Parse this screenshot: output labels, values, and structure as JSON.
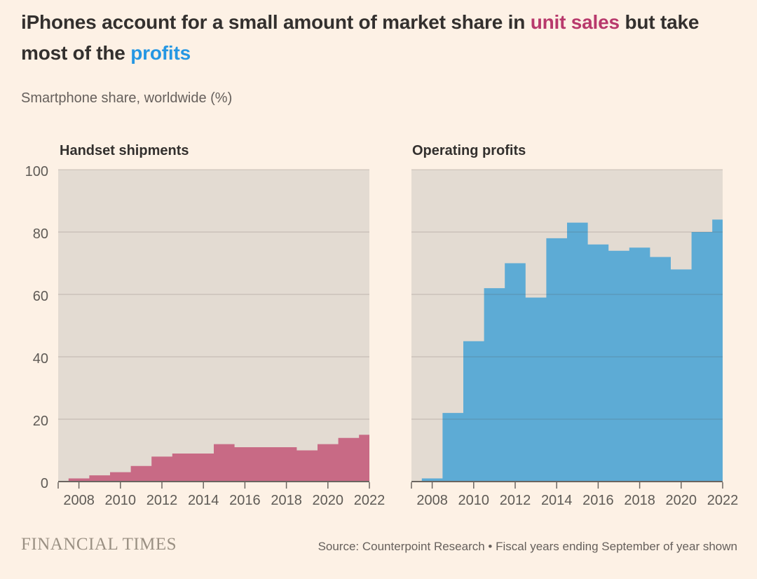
{
  "page": {
    "background": "#fdf1e5"
  },
  "colors": {
    "crimson_accent": "#b8396c",
    "blue_accent": "#2597e3",
    "title_text": "#33302e",
    "muted_text": "#66605c",
    "axis_label": "#5f5b56",
    "axis_line": "#6b6560",
    "plot_background": "#e3dbd2",
    "gridline": "rgba(80,70,60,0.16)",
    "pink_series": "#c86a85",
    "blue_series": "#5dabd5"
  },
  "title": {
    "line1": [
      {
        "text": "iPhones account for a small amount of market share in "
      },
      {
        "text": "unit sales"
      },
      {
        "text": " but take"
      }
    ],
    "line2": [
      {
        "text": "most of the "
      },
      {
        "text": "profits"
      }
    ]
  },
  "subtitle": "Smartphone share, worldwide (%)",
  "chart_data": [
    {
      "type": "area",
      "step": true,
      "title": "Handset shipments",
      "color": "#c86a85",
      "categories": [
        2008,
        2009,
        2010,
        2011,
        2012,
        2013,
        2014,
        2015,
        2016,
        2017,
        2018,
        2019,
        2020,
        2021,
        2022
      ],
      "values": [
        1,
        2,
        3,
        5,
        8,
        9,
        9,
        12,
        11,
        11,
        11,
        10,
        12,
        14,
        15
      ],
      "xlim": [
        2007,
        2022
      ],
      "ylim": [
        0,
        100
      ],
      "yticks": [
        0,
        20,
        40,
        60,
        80,
        100
      ],
      "xticks": [
        2008,
        2010,
        2012,
        2014,
        2016,
        2018,
        2020,
        2022
      ],
      "grid": true,
      "show_y_labels": true
    },
    {
      "type": "area",
      "step": true,
      "title": "Operating profits",
      "color": "#5dabd5",
      "categories": [
        2008,
        2009,
        2010,
        2011,
        2012,
        2013,
        2014,
        2015,
        2016,
        2017,
        2018,
        2019,
        2020,
        2021,
        2022
      ],
      "values": [
        1,
        22,
        45,
        62,
        70,
        59,
        78,
        83,
        76,
        74,
        75,
        72,
        68,
        80,
        84
      ],
      "xlim": [
        2007,
        2022
      ],
      "ylim": [
        0,
        100
      ],
      "yticks": [
        0,
        20,
        40,
        60,
        80,
        100
      ],
      "xticks": [
        2008,
        2010,
        2012,
        2014,
        2016,
        2018,
        2020,
        2022
      ],
      "grid": true,
      "show_y_labels": false
    }
  ],
  "footer": {
    "brand": "FINANCIAL TIMES",
    "source": "Source: Counterpoint Research • Fiscal years ending September of year shown"
  }
}
